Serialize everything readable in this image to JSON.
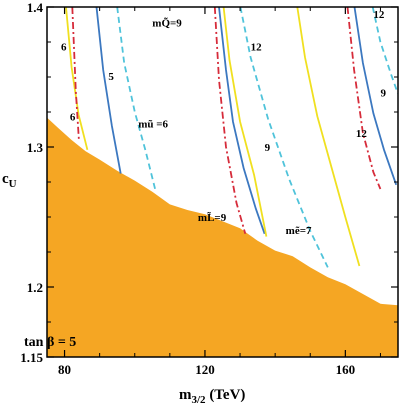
{
  "chart_data": {
    "type": "line",
    "title": "",
    "xlabel": "m",
    "xlabel_sub": "3/2",
    "xlabel_unit": " (TeV)",
    "ylabel": "c",
    "ylabel_sub": "U",
    "xlim": [
      75,
      175
    ],
    "ylim": [
      1.15,
      1.4
    ],
    "x_ticks": [
      80,
      120,
      160
    ],
    "x_tick_labels": [
      "80",
      "120",
      "160"
    ],
    "y_ticks": [
      1.15,
      1.2,
      1.3,
      1.4
    ],
    "y_tick_labels": [
      "1.15",
      "1.2",
      "1.3",
      "1.4"
    ],
    "grid": false,
    "colors": {
      "excluded": "#F5A623",
      "blue": "#3C78C0",
      "cyan": "#4FC3DA",
      "red": "#D62B3A",
      "yellow": "#F0E020",
      "axis": "#000000"
    },
    "excluded_region": {
      "label": "tan β = 5",
      "boundary": [
        [
          75,
          1.321
        ],
        [
          78,
          1.314
        ],
        [
          82,
          1.305
        ],
        [
          86,
          1.297
        ],
        [
          90,
          1.291
        ],
        [
          95,
          1.283
        ],
        [
          100,
          1.276
        ],
        [
          105,
          1.268
        ],
        [
          110,
          1.259
        ],
        [
          115,
          1.255
        ],
        [
          120,
          1.252
        ],
        [
          125,
          1.247
        ],
        [
          130,
          1.242
        ],
        [
          135,
          1.233
        ],
        [
          140,
          1.226
        ],
        [
          145,
          1.222
        ],
        [
          150,
          1.214
        ],
        [
          155,
          1.207
        ],
        [
          160,
          1.202
        ],
        [
          165,
          1.195
        ],
        [
          170,
          1.188
        ],
        [
          175,
          1.187
        ]
      ]
    },
    "series": [
      {
        "style": "yellow",
        "points": [
          [
            80.4,
            1.4
          ],
          [
            82,
            1.357
          ],
          [
            84,
            1.323
          ],
          [
            86.5,
            1.298
          ]
        ]
      },
      {
        "style": "red",
        "points": [
          [
            82.2,
            1.4
          ],
          [
            83.2,
            1.34
          ],
          [
            84.1,
            1.305
          ]
        ]
      },
      {
        "style": "blue",
        "points": [
          [
            89.1,
            1.4
          ],
          [
            91,
            1.355
          ],
          [
            93.5,
            1.315
          ],
          [
            96,
            1.281
          ]
        ]
      },
      {
        "style": "cyan",
        "points": [
          [
            95,
            1.4
          ],
          [
            97,
            1.36
          ],
          [
            100,
            1.325
          ],
          [
            103,
            1.298
          ],
          [
            106,
            1.268
          ]
        ]
      },
      {
        "style": "red",
        "points": [
          [
            122.8,
            1.4
          ],
          [
            124,
            1.348
          ],
          [
            126,
            1.3
          ],
          [
            129,
            1.26
          ],
          [
            131.5,
            1.238
          ]
        ]
      },
      {
        "style": "blue",
        "points": [
          [
            124,
            1.4
          ],
          [
            126,
            1.355
          ],
          [
            128,
            1.318
          ],
          [
            131,
            1.285
          ],
          [
            134.5,
            1.256
          ],
          [
            137,
            1.238
          ]
        ]
      },
      {
        "style": "yellow",
        "points": [
          [
            125.3,
            1.4
          ],
          [
            127,
            1.362
          ],
          [
            130,
            1.318
          ],
          [
            134,
            1.28
          ],
          [
            137.5,
            1.236
          ]
        ]
      },
      {
        "style": "cyan",
        "points": [
          [
            130.1,
            1.4
          ],
          [
            133,
            1.364
          ],
          [
            138,
            1.32
          ],
          [
            144,
            1.277
          ],
          [
            150,
            1.24
          ],
          [
            155,
            1.214
          ]
        ]
      },
      {
        "style": "red",
        "points": [
          [
            160.6,
            1.4
          ],
          [
            162.5,
            1.355
          ],
          [
            165,
            1.31
          ],
          [
            168,
            1.282
          ],
          [
            170,
            1.27
          ]
        ]
      },
      {
        "style": "blue",
        "points": [
          [
            162.6,
            1.4
          ],
          [
            165,
            1.36
          ],
          [
            168,
            1.324
          ],
          [
            171,
            1.298
          ],
          [
            174.5,
            1.273
          ]
        ]
      },
      {
        "style": "yellow",
        "points": [
          [
            146.3,
            1.4
          ],
          [
            148.5,
            1.364
          ],
          [
            152,
            1.322
          ],
          [
            156,
            1.286
          ],
          [
            160,
            1.25
          ],
          [
            164,
            1.215
          ]
        ]
      },
      {
        "style": "cyan",
        "points": [
          [
            167.8,
            1.4
          ],
          [
            170,
            1.375
          ],
          [
            173,
            1.352
          ],
          [
            175,
            1.338
          ]
        ]
      }
    ],
    "annotations": [
      {
        "text": "6",
        "x": 79,
        "y": 1.369
      },
      {
        "text": "6",
        "x": 81.5,
        "y": 1.319
      },
      {
        "text": "5",
        "x": 92.5,
        "y": 1.348
      },
      {
        "text": "mQ̃=9",
        "x": 105,
        "y": 1.386
      },
      {
        "text": "mũ =6",
        "x": 101,
        "y": 1.314
      },
      {
        "text": "12",
        "x": 133,
        "y": 1.369
      },
      {
        "text": "9",
        "x": 137,
        "y": 1.297
      },
      {
        "text": "mL̃=9",
        "x": 118,
        "y": 1.247
      },
      {
        "text": "mẽ=7",
        "x": 143,
        "y": 1.238
      },
      {
        "text": "12",
        "x": 168,
        "y": 1.392
      },
      {
        "text": "9",
        "x": 170,
        "y": 1.336
      },
      {
        "text": "12",
        "x": 163,
        "y": 1.307
      }
    ]
  }
}
